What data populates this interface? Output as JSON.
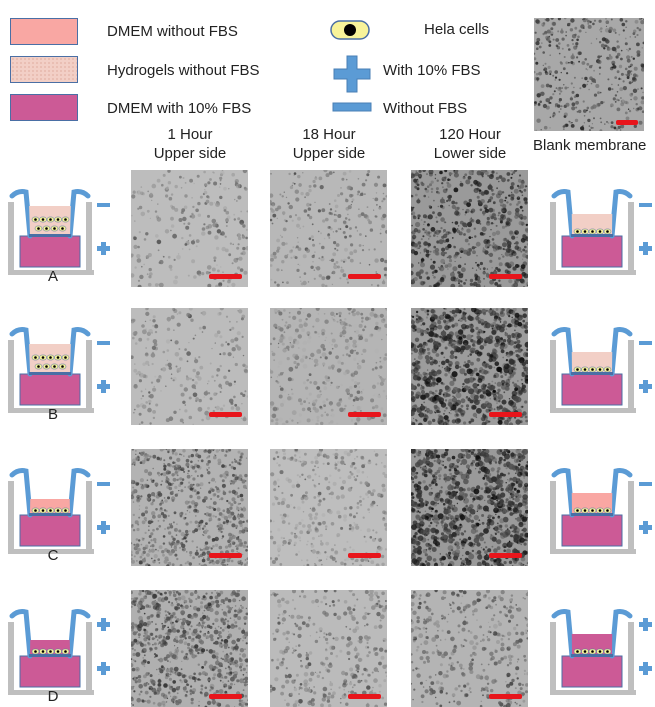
{
  "legend": {
    "items": [
      {
        "label": "DMEM without FBS",
        "color": "#f9a7a3"
      },
      {
        "label": "Hydrogels without FBS",
        "color": "#f2cfc6"
      },
      {
        "label": "DMEM with 10% FBS",
        "color": "#cc5a96"
      },
      {
        "label": "Hela cells",
        "color": "#f7f39a"
      },
      {
        "label": "With 10% FBS",
        "color": "#5b9bd5"
      },
      {
        "label": "Without FBS",
        "color": "#5b9bd5"
      }
    ]
  },
  "columns": [
    {
      "line1": "1 Hour",
      "line2": "Upper side"
    },
    {
      "line1": "18 Hour",
      "line2": "Upper side"
    },
    {
      "line1": "120 Hour",
      "line2": "Lower side"
    }
  ],
  "blank_membrane": {
    "label": "Blank membrane"
  },
  "rows": [
    {
      "label": "A",
      "upper_fill": "hydrogel",
      "upper_sign": "-",
      "lower_sign": "+",
      "right_sign_top": "-",
      "right_sign_bottom": "+"
    },
    {
      "label": "B",
      "upper_fill": "hydrogel",
      "upper_sign": "-",
      "lower_sign": "+",
      "right_sign_top": "-",
      "right_sign_bottom": "+"
    },
    {
      "label": "C",
      "upper_fill": "dmem",
      "upper_sign": "-",
      "lower_sign": "+",
      "right_sign_top": "-",
      "right_sign_bottom": "+"
    },
    {
      "label": "D",
      "upper_fill": "fbs",
      "upper_sign": "+",
      "lower_sign": "+",
      "right_sign_top": "+",
      "right_sign_bottom": "+"
    }
  ],
  "colors": {
    "frame": "#bfbfbf",
    "insert": "#5b9bd5",
    "dmem": "#f9a7a3",
    "hydrogel": "#f2cfc6",
    "fbs": "#cc5a96",
    "scale_bar": "#e8151b"
  }
}
